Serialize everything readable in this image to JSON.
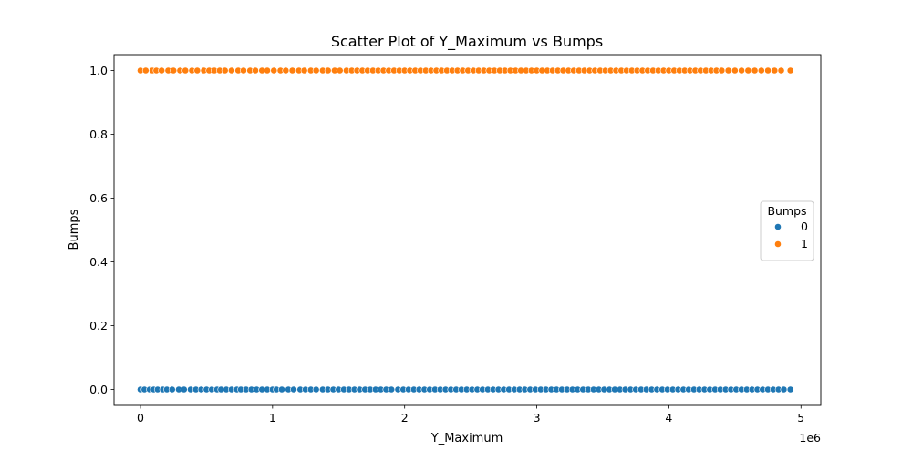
{
  "chart_data": {
    "type": "scatter",
    "title": "Scatter Plot of Y_Maximum vs Bumps",
    "xlabel": "Y_Maximum",
    "ylabel": "Bumps",
    "x_offset_text": "1e6",
    "xlim": [
      -200000,
      5150000
    ],
    "ylim": [
      -0.05,
      1.05
    ],
    "x_ticks": [
      {
        "value": 0,
        "label": "0"
      },
      {
        "value": 1000000,
        "label": "1"
      },
      {
        "value": 2000000,
        "label": "2"
      },
      {
        "value": 3000000,
        "label": "3"
      },
      {
        "value": 4000000,
        "label": "4"
      },
      {
        "value": 5000000,
        "label": "5"
      }
    ],
    "y_ticks": [
      {
        "value": 0.0,
        "label": "0.0"
      },
      {
        "value": 0.2,
        "label": "0.2"
      },
      {
        "value": 0.4,
        "label": "0.4"
      },
      {
        "value": 0.6,
        "label": "0.6"
      },
      {
        "value": 0.8,
        "label": "0.8"
      },
      {
        "value": 1.0,
        "label": "1.0"
      }
    ],
    "grid": false,
    "legend": {
      "title": "Bumps",
      "placement": "center-right",
      "entries": [
        {
          "label": "0",
          "color": "#1f77b4"
        },
        {
          "label": "1",
          "color": "#ff7f0e"
        }
      ]
    },
    "series": [
      {
        "name": "0",
        "color": "#1f77b4",
        "y": 0,
        "x": [
          0,
          30000,
          70000,
          100000,
          130000,
          170000,
          200000,
          240000,
          290000,
          330000,
          380000,
          420000,
          460000,
          500000,
          540000,
          580000,
          610000,
          650000,
          690000,
          730000,
          760000,
          800000,
          840000,
          880000,
          920000,
          960000,
          1000000,
          1030000,
          1070000,
          1120000,
          1160000,
          1210000,
          1250000,
          1290000,
          1330000,
          1380000,
          1420000,
          1460000,
          1500000,
          1540000,
          1580000,
          1620000,
          1660000,
          1700000,
          1740000,
          1780000,
          1820000,
          1860000,
          1900000,
          1950000,
          1990000,
          2030000,
          2070000,
          2110000,
          2150000,
          2190000,
          2230000,
          2270000,
          2310000,
          2350000,
          2390000,
          2430000,
          2470000,
          2510000,
          2550000,
          2590000,
          2630000,
          2670000,
          2710000,
          2750000,
          2790000,
          2830000,
          2870000,
          2910000,
          2950000,
          2990000,
          3030000,
          3070000,
          3110000,
          3150000,
          3190000,
          3230000,
          3270000,
          3310000,
          3350000,
          3390000,
          3430000,
          3470000,
          3510000,
          3550000,
          3590000,
          3630000,
          3670000,
          3710000,
          3750000,
          3790000,
          3830000,
          3870000,
          3910000,
          3950000,
          3990000,
          4030000,
          4070000,
          4110000,
          4150000,
          4190000,
          4230000,
          4270000,
          4310000,
          4350000,
          4390000,
          4430000,
          4470000,
          4510000,
          4550000,
          4590000,
          4630000,
          4670000,
          4710000,
          4750000,
          4790000,
          4830000,
          4870000,
          4920000
        ]
      },
      {
        "name": "1",
        "color": "#ff7f0e",
        "y": 1,
        "x": [
          0,
          40000,
          90000,
          120000,
          160000,
          210000,
          250000,
          300000,
          340000,
          390000,
          430000,
          480000,
          520000,
          560000,
          600000,
          640000,
          690000,
          740000,
          780000,
          830000,
          870000,
          920000,
          960000,
          1010000,
          1060000,
          1100000,
          1150000,
          1200000,
          1240000,
          1290000,
          1330000,
          1380000,
          1420000,
          1470000,
          1510000,
          1560000,
          1600000,
          1640000,
          1680000,
          1720000,
          1760000,
          1800000,
          1840000,
          1880000,
          1920000,
          1960000,
          2000000,
          2040000,
          2080000,
          2120000,
          2160000,
          2200000,
          2240000,
          2280000,
          2320000,
          2360000,
          2400000,
          2440000,
          2480000,
          2520000,
          2560000,
          2600000,
          2640000,
          2680000,
          2720000,
          2760000,
          2800000,
          2840000,
          2880000,
          2920000,
          2960000,
          3000000,
          3040000,
          3080000,
          3120000,
          3160000,
          3200000,
          3240000,
          3280000,
          3320000,
          3360000,
          3400000,
          3440000,
          3480000,
          3520000,
          3560000,
          3600000,
          3640000,
          3680000,
          3720000,
          3760000,
          3800000,
          3840000,
          3880000,
          3920000,
          3960000,
          4000000,
          4040000,
          4080000,
          4120000,
          4160000,
          4200000,
          4240000,
          4280000,
          4320000,
          4360000,
          4400000,
          4450000,
          4500000,
          4550000,
          4600000,
          4650000,
          4700000,
          4750000,
          4800000,
          4850000,
          4920000
        ]
      }
    ]
  }
}
